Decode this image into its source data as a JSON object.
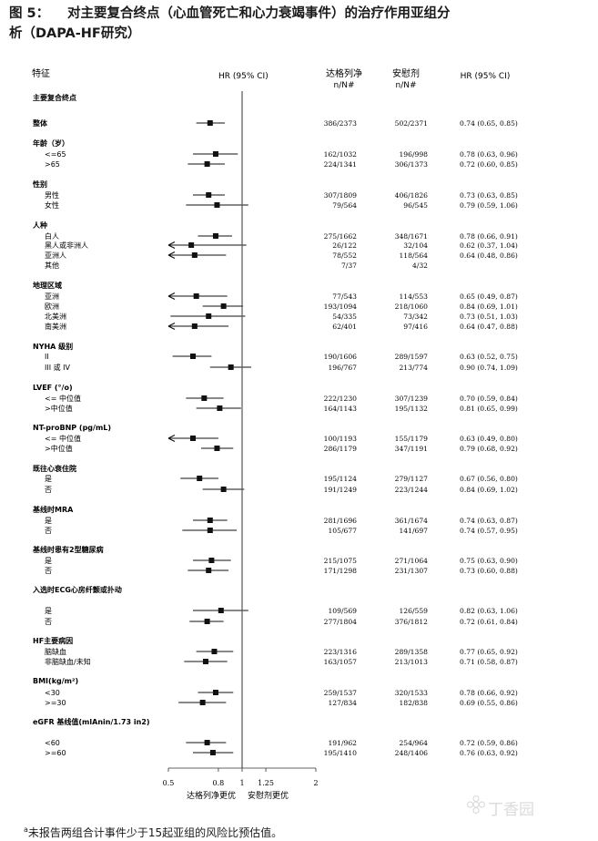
{
  "figure": {
    "label": "图 5：",
    "title_line1": "对主要复合终点（心血管死亡和心力衰竭事件）的治疗作用亚组分",
    "title_line2": "析（DAPA-HF研究）"
  },
  "headers": {
    "feature": "特征",
    "hr_ci_left": "HR (95% CI)",
    "dapa": "达格列净",
    "dapa_n": "n/N#",
    "placebo": "安慰剂",
    "placebo_n": "n/N#",
    "hr_ci_right": "HR (95% CI)"
  },
  "chart_data": {
    "type": "forest",
    "x_scale": "log",
    "xlim": [
      0.5,
      2
    ],
    "reference_line": 1,
    "ticks": [
      0.5,
      0.8,
      1,
      1.25,
      2
    ],
    "tick_labels": [
      "0.5",
      "0.8",
      "1",
      "1.25",
      "2"
    ],
    "favors_left": "达格列净更优",
    "favors_right": "安慰剂更优",
    "rows": [
      {
        "label": "主要复合终点",
        "kind": "group"
      },
      {
        "label": "整体",
        "kind": "group",
        "dapa": "386/2373",
        "placebo": "502/2371",
        "hr": 0.74,
        "lo": 0.65,
        "hi": 0.85,
        "text": "0.74 (0.65, 0.85)"
      },
      {
        "label": "年龄（岁）",
        "kind": "group"
      },
      {
        "label": "<=65",
        "kind": "sub",
        "dapa": "162/1032",
        "placebo": "196/998",
        "hr": 0.78,
        "lo": 0.63,
        "hi": 0.96,
        "text": "0.78 (0.63, 0.96)"
      },
      {
        "label": ">65",
        "kind": "sub",
        "dapa": "224/1341",
        "placebo": "306/1373",
        "hr": 0.72,
        "lo": 0.6,
        "hi": 0.85,
        "text": "0.72 (0.60, 0.85)"
      },
      {
        "label": "性别",
        "kind": "group"
      },
      {
        "label": "男性",
        "kind": "sub",
        "dapa": "307/1809",
        "placebo": "406/1826",
        "hr": 0.73,
        "lo": 0.63,
        "hi": 0.85,
        "text": "0.73 (0.63, 0.85)"
      },
      {
        "label": "女性",
        "kind": "sub",
        "dapa": "79/564",
        "placebo": "96/545",
        "hr": 0.79,
        "lo": 0.59,
        "hi": 1.06,
        "text": "0.79 (0.59, 1.06)"
      },
      {
        "label": "人种",
        "kind": "group"
      },
      {
        "label": "白人",
        "kind": "sub",
        "dapa": "275/1662",
        "placebo": "348/1671",
        "hr": 0.78,
        "lo": 0.66,
        "hi": 0.91,
        "text": "0.78 (0.66, 0.91)"
      },
      {
        "label": "黑人或非洲人",
        "kind": "sub",
        "dapa": "26/122",
        "placebo": "32/104",
        "hr": 0.62,
        "lo": 0.37,
        "hi": 1.04,
        "text": "0.62 (0.37, 1.04)"
      },
      {
        "label": "亚洲人",
        "kind": "sub",
        "dapa": "78/552",
        "placebo": "118/564",
        "hr": 0.64,
        "lo": 0.48,
        "hi": 0.86,
        "text": "0.64 (0.48, 0.86)"
      },
      {
        "label": "其他",
        "kind": "sub",
        "dapa": "7/37",
        "placebo": "4/32"
      },
      {
        "label": "地理区域",
        "kind": "group"
      },
      {
        "label": "亚洲",
        "kind": "sub",
        "dapa": "77/543",
        "placebo": "114/553",
        "hr": 0.65,
        "lo": 0.49,
        "hi": 0.87,
        "text": "0.65 (0.49, 0.87)"
      },
      {
        "label": "欧洲",
        "kind": "sub",
        "dapa": "193/1094",
        "placebo": "218/1060",
        "hr": 0.84,
        "lo": 0.69,
        "hi": 1.01,
        "text": "0.84 (0.69, 1.01)"
      },
      {
        "label": "北美洲",
        "kind": "sub",
        "dapa": "54/335",
        "placebo": "73/342",
        "hr": 0.73,
        "lo": 0.51,
        "hi": 1.03,
        "text": "0.73 (0.51, 1.03)"
      },
      {
        "label": "南美洲",
        "kind": "sub",
        "dapa": "62/401",
        "placebo": "97/416",
        "hr": 0.64,
        "lo": 0.47,
        "hi": 0.88,
        "text": "0.64 (0.47, 0.88)"
      },
      {
        "label": "NYHA 级别",
        "kind": "group"
      },
      {
        "label": "II",
        "kind": "sub",
        "dapa": "190/1606",
        "placebo": "289/1597",
        "hr": 0.63,
        "lo": 0.52,
        "hi": 0.75,
        "text": "0.63 (0.52, 0.75)"
      },
      {
        "label": "III 或 IV",
        "kind": "sub",
        "dapa": "196/767",
        "placebo": "213/774",
        "hr": 0.9,
        "lo": 0.74,
        "hi": 1.09,
        "text": "0.90 (0.74, 1.09)"
      },
      {
        "label": "LVEF (°/o)",
        "kind": "group"
      },
      {
        "label": "<= 中位值",
        "kind": "sub",
        "dapa": "222/1230",
        "placebo": "307/1239",
        "hr": 0.7,
        "lo": 0.59,
        "hi": 0.84,
        "text": "0.70 (0.59, 0.84)"
      },
      {
        "label": ">中位值",
        "kind": "sub",
        "dapa": "164/1143",
        "placebo": "195/1132",
        "hr": 0.81,
        "lo": 0.65,
        "hi": 0.99,
        "text": "0.81 (0.65, 0.99)"
      },
      {
        "label": "NT-proBNP (pg/mL)",
        "kind": "group"
      },
      {
        "label": "<= 中位值",
        "kind": "sub",
        "dapa": "100/1193",
        "placebo": "155/1179",
        "hr": 0.63,
        "lo": 0.49,
        "hi": 0.8,
        "text": "0.63 (0.49, 0.80)"
      },
      {
        "label": ">中位值",
        "kind": "sub",
        "dapa": "286/1179",
        "placebo": "347/1191",
        "hr": 0.79,
        "lo": 0.68,
        "hi": 0.92,
        "text": "0.79 (0.68, 0.92)"
      },
      {
        "label": "既往心衰住院",
        "kind": "group"
      },
      {
        "label": "是",
        "kind": "sub",
        "dapa": "195/1124",
        "placebo": "279/1127",
        "hr": 0.67,
        "lo": 0.56,
        "hi": 0.8,
        "text": "0.67 (0.56, 0.80)"
      },
      {
        "label": "否",
        "kind": "sub",
        "dapa": "191/1249",
        "placebo": "223/1244",
        "hr": 0.84,
        "lo": 0.69,
        "hi": 1.02,
        "text": "0.84 (0.69, 1.02)"
      },
      {
        "label": "基线时MRA",
        "kind": "group"
      },
      {
        "label": "是",
        "kind": "sub",
        "dapa": "281/1696",
        "placebo": "361/1674",
        "hr": 0.74,
        "lo": 0.63,
        "hi": 0.87,
        "text": "0.74 (0.63, 0.87)"
      },
      {
        "label": "否",
        "kind": "sub",
        "dapa": "105/677",
        "placebo": "141/697",
        "hr": 0.74,
        "lo": 0.57,
        "hi": 0.95,
        "text": "0.74 (0.57, 0.95)"
      },
      {
        "label": "基线时患有2型糖尿病",
        "kind": "group"
      },
      {
        "label": "是",
        "kind": "sub",
        "dapa": "215/1075",
        "placebo": "271/1064",
        "hr": 0.75,
        "lo": 0.63,
        "hi": 0.9,
        "text": "0.75 (0.63, 0.90)"
      },
      {
        "label": "否",
        "kind": "sub",
        "dapa": "171/1298",
        "placebo": "231/1307",
        "hr": 0.73,
        "lo": 0.6,
        "hi": 0.88,
        "text": "0.73 (0.60, 0.88)"
      },
      {
        "label": "入选时ECG心房纤颤或扑动",
        "kind": "group"
      },
      {
        "label": "是",
        "kind": "sub",
        "dapa": "109/569",
        "placebo": "126/559",
        "hr": 0.82,
        "lo": 0.63,
        "hi": 1.06,
        "text": "0.82 (0.63, 1.06)"
      },
      {
        "label": "否",
        "kind": "sub",
        "dapa": "277/1804",
        "placebo": "376/1812",
        "hr": 0.72,
        "lo": 0.61,
        "hi": 0.84,
        "text": "0.72 (0.61, 0.84)"
      },
      {
        "label": "HF主要病因",
        "kind": "group"
      },
      {
        "label": "脑缺血",
        "kind": "sub",
        "dapa": "223/1316",
        "placebo": "289/1358",
        "hr": 0.77,
        "lo": 0.65,
        "hi": 0.92,
        "text": "0.77 (0.65, 0.92)"
      },
      {
        "label": "非脑缺血/未知",
        "kind": "sub",
        "dapa": "163/1057",
        "placebo": "213/1013",
        "hr": 0.71,
        "lo": 0.58,
        "hi": 0.87,
        "text": "0.71 (0.58, 0.87)"
      },
      {
        "label": "BMI(kg/m²)",
        "kind": "group"
      },
      {
        "label": "<30",
        "kind": "sub",
        "dapa": "259/1537",
        "placebo": "320/1533",
        "hr": 0.78,
        "lo": 0.66,
        "hi": 0.92,
        "text": "0.78 (0.66, 0.92)"
      },
      {
        "label": ">=30",
        "kind": "sub",
        "dapa": "127/834",
        "placebo": "182/838",
        "hr": 0.69,
        "lo": 0.55,
        "hi": 0.86,
        "text": "0.69 (0.55, 0.86)"
      },
      {
        "label": "eGFR 基线值(mlAnin/1.73 in2)",
        "kind": "group"
      },
      {
        "label": "<60",
        "kind": "sub",
        "dapa": "191/962",
        "placebo": "254/964",
        "hr": 0.72,
        "lo": 0.59,
        "hi": 0.86,
        "text": "0.72 (0.59, 0.86)"
      },
      {
        "label": ">=60",
        "kind": "sub",
        "dapa": "195/1410",
        "placebo": "248/1406",
        "hr": 0.76,
        "lo": 0.63,
        "hi": 0.92,
        "text": "0.76 (0.63, 0.92)"
      }
    ]
  },
  "footnote": {
    "marker": "a",
    "text": "未报告两组合计事件少于15起亚组的风险比预估值。"
  },
  "watermark": {
    "text": "丁香园"
  }
}
